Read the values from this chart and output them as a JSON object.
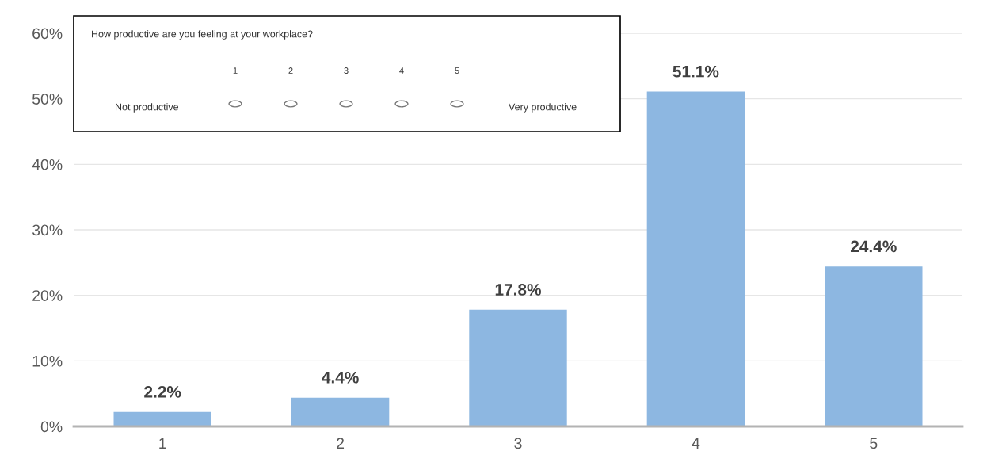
{
  "chart_data": {
    "type": "bar",
    "categories": [
      "1",
      "2",
      "3",
      "4",
      "5"
    ],
    "values": [
      2.2,
      4.4,
      17.8,
      51.1,
      24.4
    ],
    "value_labels": [
      "2.2%",
      "4.4%",
      "17.8%",
      "51.1%",
      "24.4%"
    ],
    "color": "#8db7e1",
    "ylim": [
      0,
      60
    ],
    "yticks": [
      {
        "value": 0,
        "label": "0%"
      },
      {
        "value": 10,
        "label": "10%"
      },
      {
        "value": 20,
        "label": "20%"
      },
      {
        "value": 30,
        "label": "30%"
      },
      {
        "value": 40,
        "label": "40%"
      },
      {
        "value": 50,
        "label": "50%"
      },
      {
        "value": 60,
        "label": "60%"
      }
    ],
    "grid": "y",
    "annotations": [
      "How productive are you feeling at your workplace?",
      "Not productive",
      "Very productive",
      "1",
      "2",
      "3",
      "4",
      "5"
    ]
  }
}
